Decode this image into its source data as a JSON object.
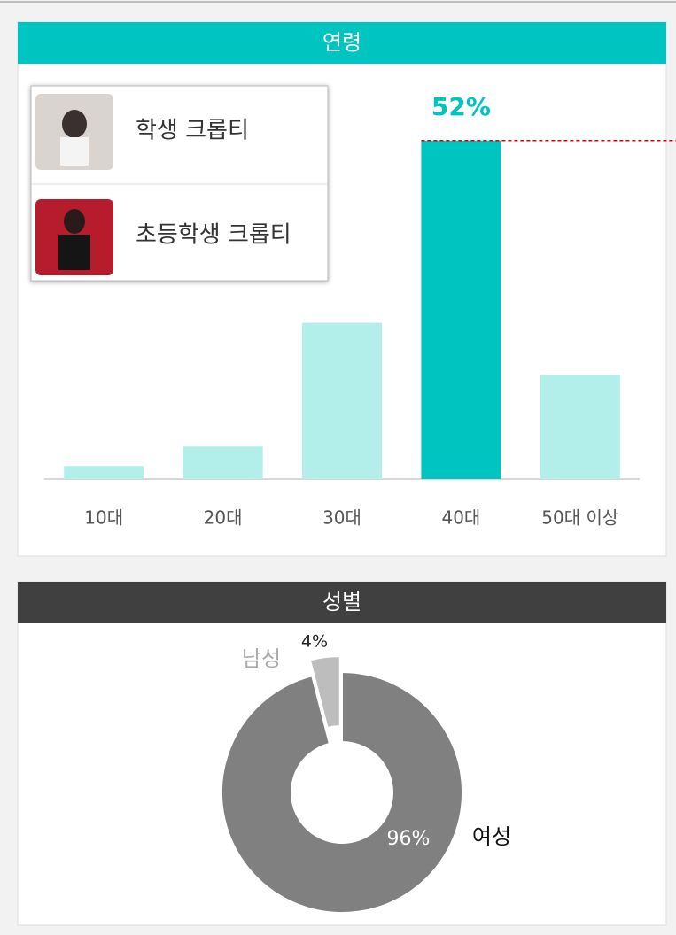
{
  "chart_data": [
    {
      "type": "bar",
      "title": "연령",
      "categories": [
        "10대",
        "20대",
        "30대",
        "40대",
        "50대 이상"
      ],
      "values": [
        2,
        5,
        24,
        52,
        16
      ],
      "value_labels": [
        null,
        null,
        null,
        "52%",
        null
      ],
      "colors": [
        "#b2eeea",
        "#b2eeea",
        "#b2eeea",
        "#00c4c0",
        "#b2eeea"
      ],
      "ylim": [
        0,
        60
      ]
    },
    {
      "type": "pie",
      "title": "성별",
      "categories": [
        "남성",
        "여성"
      ],
      "values": [
        4,
        96
      ],
      "value_labels": [
        "4%",
        "96%"
      ],
      "colors": [
        "#bdbdbd",
        "#808080"
      ]
    }
  ],
  "popup": {
    "items": [
      "학생 크롭티",
      "초등학생 크롭티"
    ]
  }
}
